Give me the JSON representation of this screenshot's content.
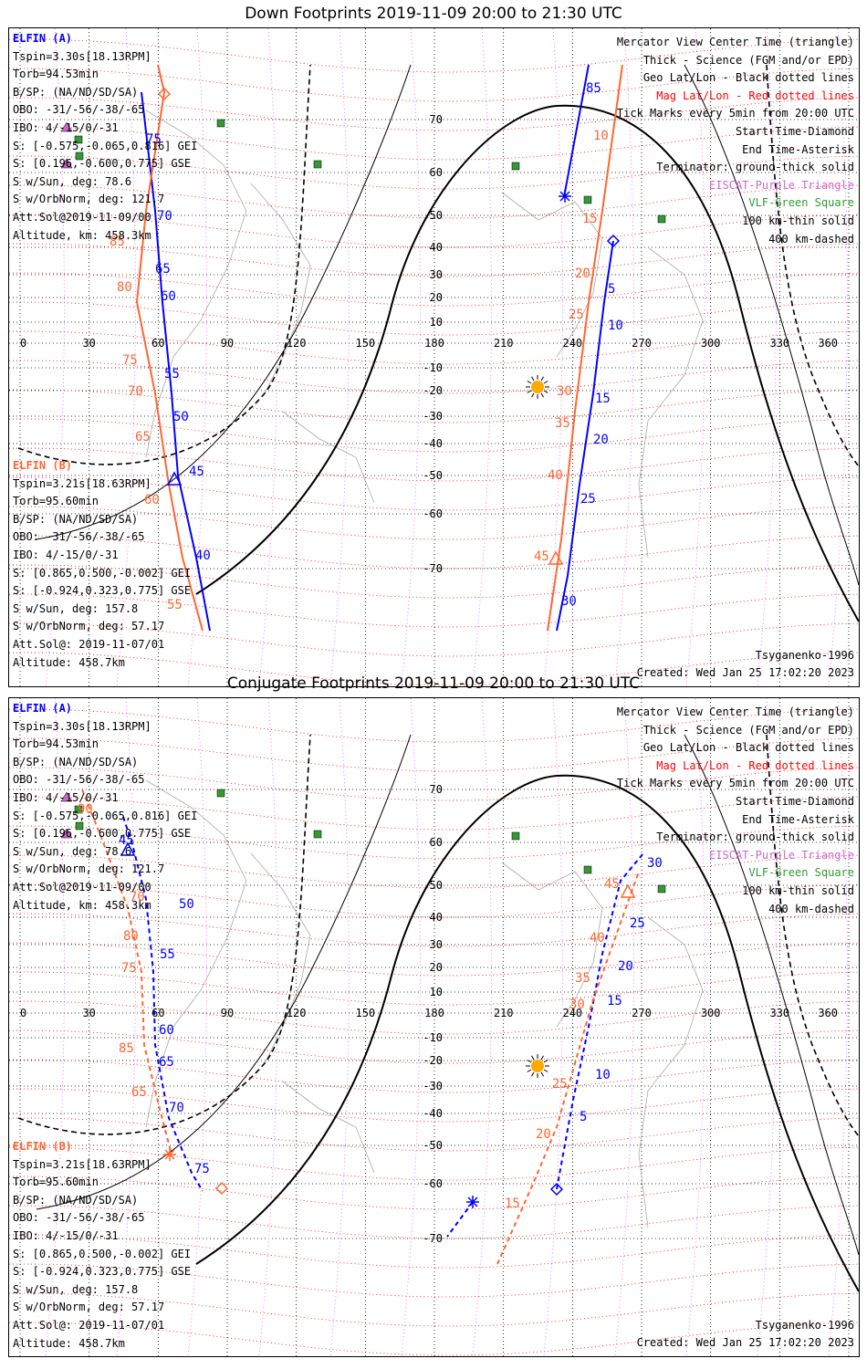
{
  "panels": [
    {
      "title": "Down Footprints 2019-11-09 20:00 to 21:30 UTC",
      "elfin_a": [
        "ELFIN (A)",
        "Tspin=3.30s[18.13RPM]",
        "Torb=94.53min",
        "B/SP: (NA/ND/SD/SA)",
        "OBO: -31/-56/-38/-65",
        "IBO: 4/-15/0/-31",
        "S: [-0.575,-0.065,0.816] GEI",
        "S: [0.196,-0.600,0.775] GSE",
        "S w/Sun, deg: 78.6",
        "S w/OrbNorm, deg: 121.7",
        "Att.Sol@2019-11-09/00",
        "Altitude, km: 458.3km"
      ],
      "elfin_b": [
        "ELFIN (B)",
        "Tspin=3.21s[18.63RPM]",
        "Torb=95.60min",
        "B/SP: (NA/ND/SD/SA)",
        "OBO: -31/-56/-38/-65",
        "IBO: 4/-15/0/-31",
        "S: [0.865,0.500,-0.002] GEI",
        "S: [-0.924,0.323,0.775] GSE",
        "S w/Sun, deg: 157.8",
        "S w/OrbNorm, deg: 57.17",
        "Att.Sol@: 2019-11-07/01",
        "Altitude: 458.7km"
      ],
      "legend": [
        "Mercator View Center Time (triangle)",
        "Thick - Science (FGM and/or EPD)",
        "Geo Lat/Lon - Black dotted lines",
        "Mag Lat/Lon - Red dotted lines",
        "Tick Marks every 5min from 20:00 UTC",
        "Start Time-Diamond",
        "End Time-Asterisk",
        "Terminator: ground-thick solid",
        "EISCAT-Purple Triangle",
        "VLF-Green Square",
        "100 km-thin solid",
        "400 km-dashed"
      ],
      "model": "Tsyganenko-1996",
      "created": "Created: Wed Jan 25 17:02:20 2023",
      "traces": {
        "a_labels": [
          "85",
          "5",
          "10",
          "15",
          "20",
          "25",
          "30"
        ],
        "a_labels_left": [
          "75",
          "70",
          "65",
          "60",
          "55",
          "50",
          "45",
          "40"
        ],
        "b_labels": [
          "10",
          "15",
          "20",
          "25",
          "30",
          "35",
          "40",
          "45"
        ],
        "b_labels_left": [
          "85",
          "80",
          "75",
          "70",
          "65",
          "60",
          "55"
        ]
      }
    },
    {
      "title": "Conjugate Footprints 2019-11-09 20:00 to 21:30 UTC",
      "elfin_a": [
        "ELFIN (A)",
        "Tspin=3.30s[18.13RPM]",
        "Torb=94.53min",
        "B/SP: (NA/ND/SD/SA)",
        "OBO: -31/-56/-38/-65",
        "IBO: 4/-15/0/-31",
        "S: [-0.575,-0.065,0.816] GEI",
        "S: [0.196,-0.600,0.775] GSE",
        "S w/Sun, deg: 78.6",
        "S w/OrbNorm, deg: 121.7",
        "Att.Sol@2019-11-09/00",
        "Altitude, km: 458.3km"
      ],
      "elfin_b": [
        "ELFIN (B)",
        "Tspin=3.21s[18.63RPM]",
        "Torb=95.60min",
        "B/SP: (NA/ND/SD/SA)",
        "OBO: -31/-56/-38/-65",
        "IBO: 4/-15/0/-31",
        "S: [0.865,0.500,-0.002] GEI",
        "S: [-0.924,0.323,0.775] GSE",
        "S w/Sun, deg: 157.8",
        "S w/OrbNorm, deg: 57.17",
        "Att.Sol@: 2019-11-07/01",
        "Altitude: 458.7km"
      ],
      "legend": [
        "Mercator View Center Time (triangle)",
        "Thick - Science (FGM and/or EPD)",
        "Geo Lat/Lon - Black dotted lines",
        "Mag Lat/Lon - Red dotted lines",
        "Tick Marks every 5min from 20:00 UTC",
        "Start Time-Diamond",
        "End Time-Asterisk",
        "Terminator: ground-thick solid",
        "EISCAT-Purple Triangle",
        "VLF-Green Square",
        "100 km-thin solid",
        "400 km-dashed"
      ],
      "model": "Tsyganenko-1996",
      "created": "Created: Wed Jan 25 17:02:20 2023",
      "traces": {
        "a_labels": [
          "45",
          "50",
          "55",
          "60",
          "65",
          "70",
          "75",
          "5",
          "10",
          "15",
          "20",
          "25",
          "30"
        ],
        "b_labels": [
          "90",
          "85",
          "80",
          "75",
          "70",
          "65",
          "15",
          "20",
          "25",
          "30",
          "35",
          "40",
          "45"
        ]
      }
    }
  ],
  "axes": {
    "lon_ticks": [
      "0",
      "30",
      "60",
      "90",
      "120",
      "150",
      "180",
      "210",
      "240",
      "270",
      "300",
      "330",
      "360"
    ],
    "lat_ticks": [
      "70",
      "60",
      "50",
      "40",
      "30",
      "20",
      "10",
      "-10",
      "-20",
      "-30",
      "-40",
      "-50",
      "-60",
      "-70"
    ]
  },
  "colors": {
    "elfin_a": "#0000ff",
    "elfin_b": "#ff6633",
    "mag_grid": "#ff0000",
    "eiscat": "#cc66cc",
    "vlf": "#339933",
    "sun": "#ffaa00"
  }
}
